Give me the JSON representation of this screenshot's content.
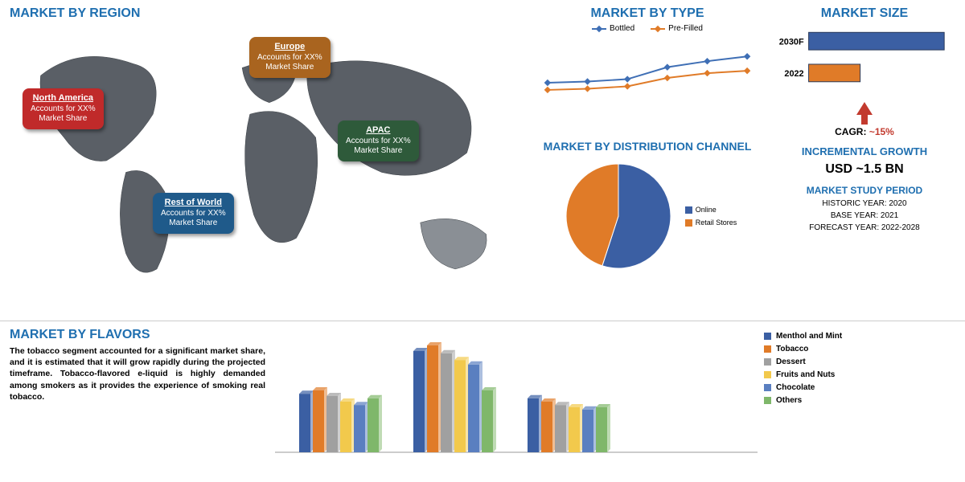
{
  "colors": {
    "title": "#1f6fb0",
    "blue_series": "#3f6fb5",
    "orange_series": "#e07b28",
    "pie_blue": "#3b5fa3",
    "pie_orange": "#e07b28",
    "map_land": "#5a5f66",
    "map_land_light": "#8a8f95",
    "na_tag": "#c02a2a",
    "eu_tag": "#a9641f",
    "apac_tag": "#2e5a3a",
    "row_tag": "#1f5a8a",
    "arrow_red": "#c23a2e",
    "flv_menthol": "#3b5fa3",
    "flv_tobacco": "#e07b28",
    "flv_dessert": "#a0a0a0",
    "flv_fruits": "#f2c94c",
    "flv_chocolate": "#5a7fc0",
    "flv_others": "#7fb76a"
  },
  "region": {
    "title": "MARKET BY REGION",
    "tags": {
      "na": {
        "name": "North America",
        "l1": "Accounts for XX%",
        "l2": "Market Share"
      },
      "eu": {
        "name": "Europe",
        "l1": "Accounts for XX%",
        "l2": "Market Share"
      },
      "apac": {
        "name": "APAC",
        "l1": "Accounts for XX%",
        "l2": "Market Share"
      },
      "row": {
        "name": "Rest of World",
        "l1": "Accounts for XX%",
        "l2": "Market Share"
      }
    }
  },
  "type": {
    "title": "MARKET BY TYPE",
    "series": [
      {
        "name": "Bottled",
        "color": "#3f6fb5",
        "points": [
          30,
          31,
          33,
          43,
          48,
          52
        ]
      },
      {
        "name": "Pre-Filled",
        "color": "#e07b28",
        "points": [
          24,
          25,
          27,
          34,
          38,
          40
        ]
      }
    ],
    "xsteps": 6,
    "ymax": 60
  },
  "distribution": {
    "title": "MARKET BY DISTRIBUTION CHANNEL",
    "slices": [
      {
        "name": "Online",
        "value": 55,
        "color": "#3b5fa3"
      },
      {
        "name": "Retail Stores",
        "value": 45,
        "color": "#e07b28"
      }
    ]
  },
  "size": {
    "title": "MARKET SIZE",
    "bars": [
      {
        "label": "2030F",
        "value": 100,
        "color": "#3b5fa3"
      },
      {
        "label": "2022",
        "value": 38,
        "color": "#e07b28"
      }
    ],
    "cagr_label": "CAGR:",
    "cagr_value": "~15%",
    "growth_label": "INCREMENTAL GROWTH",
    "growth_value": "USD ~1.5 BN",
    "study_label": "MARKET STUDY PERIOD",
    "study_lines": [
      "HISTORIC YEAR: 2020",
      "BASE YEAR: 2021",
      "FORECAST YEAR: 2022-2028"
    ]
  },
  "flavors": {
    "title": "MARKET BY FLAVORS",
    "text": "The tobacco segment accounted for a significant market share, and it is estimated that it will grow rapidly during the projected timeframe. Tobacco-flavored e-liquid is highly demanded among smokers as it provides the experience of smoking real tobacco.",
    "legend": [
      {
        "name": "Menthol and Mint",
        "color": "#3b5fa3"
      },
      {
        "name": "Tobacco",
        "color": "#e07b28"
      },
      {
        "name": "Dessert",
        "color": "#a0a0a0"
      },
      {
        "name": "Fruits and Nuts",
        "color": "#f2c94c"
      },
      {
        "name": "Chocolate",
        "color": "#5a7fc0"
      },
      {
        "name": "Others",
        "color": "#7fb76a"
      }
    ],
    "groups": [
      {
        "values": [
          52,
          55,
          50,
          45,
          42,
          48
        ]
      },
      {
        "values": [
          90,
          95,
          88,
          82,
          78,
          55
        ]
      },
      {
        "values": [
          48,
          45,
          42,
          40,
          38,
          40
        ]
      }
    ],
    "ymax": 100
  }
}
